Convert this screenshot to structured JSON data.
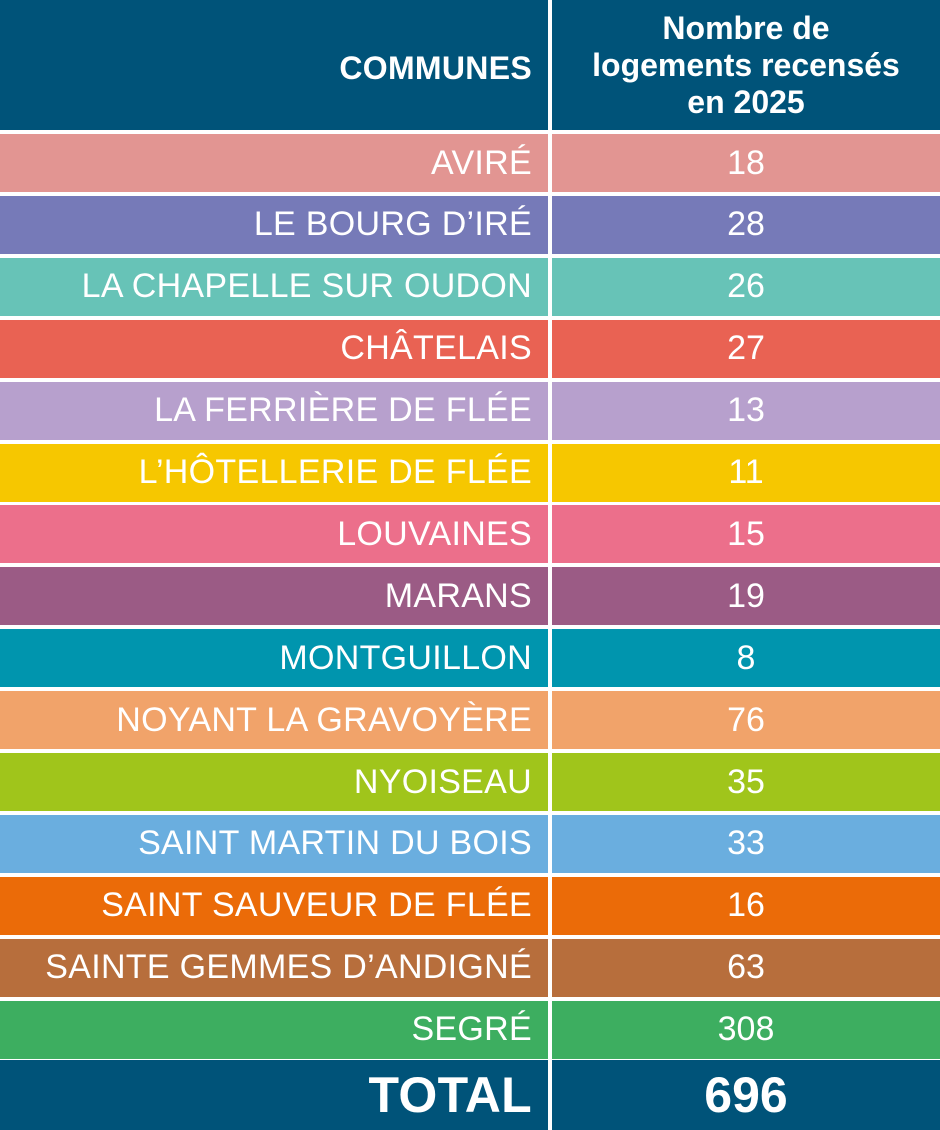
{
  "header": {
    "col1": "COMMUNES",
    "col2": "Nombre de\nlogements recensés\nen 2025",
    "bg": "#005379"
  },
  "chart_data": {
    "type": "table",
    "columns": [
      "COMMUNES",
      "Nombre de logements recensés en 2025"
    ],
    "rows": [
      {
        "name": "AVIRÉ",
        "value": "18",
        "color": "#E29592"
      },
      {
        "name": "LE BOURG D’IRÉ",
        "value": "28",
        "color": "#767AB8"
      },
      {
        "name": "LA CHAPELLE SUR OUDON",
        "value": "26",
        "color": "#67C3B7"
      },
      {
        "name": "CHÂTELAIS",
        "value": "27",
        "color": "#E96253"
      },
      {
        "name": "LA FERRIÈRE DE FLÉE",
        "value": "13",
        "color": "#B7A0CD"
      },
      {
        "name": "L’HÔTELLERIE DE FLÉE",
        "value": "11",
        "color": "#F6C700"
      },
      {
        "name": "LOUVAINES",
        "value": "15",
        "color": "#EC6F8B"
      },
      {
        "name": "MARANS",
        "value": "19",
        "color": "#9B5B85"
      },
      {
        "name": "MONTGUILLON",
        "value": "8",
        "color": "#0095AE"
      },
      {
        "name": "NOYANT LA GRAVOYÈRE",
        "value": "76",
        "color": "#F1A36A"
      },
      {
        "name": "NYOISEAU",
        "value": "35",
        "color": "#A0C51B"
      },
      {
        "name": "SAINT MARTIN DU BOIS",
        "value": "33",
        "color": "#6AAEDF"
      },
      {
        "name": "SAINT SAUVEUR DE FLÉE",
        "value": "16",
        "color": "#EB6B08"
      },
      {
        "name": "SAINTE GEMMES D’ANDIGNÉ",
        "value": "63",
        "color": "#B76E3C"
      },
      {
        "name": "SEGRÉ",
        "value": "308",
        "color": "#3DAE60"
      }
    ],
    "total": {
      "label": "TOTAL",
      "value": "696"
    }
  }
}
